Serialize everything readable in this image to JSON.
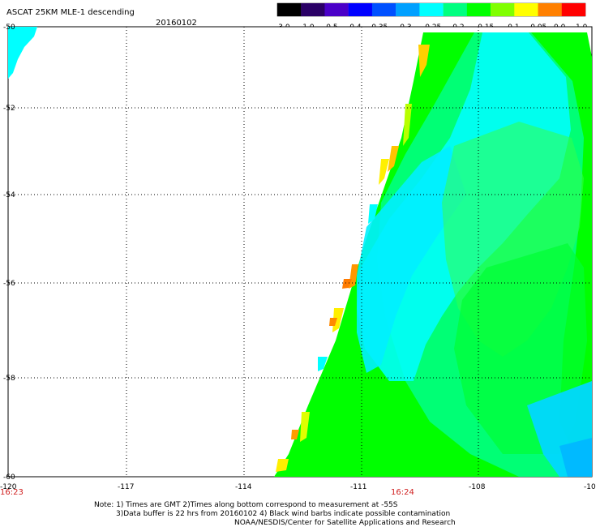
{
  "header": {
    "title": "ASCAT 25KM MLE-1 descending",
    "date": "20160102"
  },
  "colorbar": {
    "labels": [
      "-3.0",
      "-1.0",
      "-0.5",
      "-0.4",
      "-0.35",
      "-0.3",
      "-0.25",
      "-0.2",
      "-0.15",
      "-0.1",
      "-0.05",
      "0.0",
      "1.0"
    ],
    "colors": [
      "#000000",
      "#2a0066",
      "#4a00c8",
      "#0000ff",
      "#0050ff",
      "#00a0ff",
      "#00ffff",
      "#00ff80",
      "#00ff00",
      "#80ff00",
      "#ffff00",
      "#ff8000",
      "#ff0000"
    ]
  },
  "map": {
    "lat_labels": [
      "-50",
      "-52",
      "-54",
      "-56",
      "-58",
      "-60"
    ],
    "lon_labels": [
      "-120",
      "-117",
      "-114",
      "-111",
      "-108",
      "-10"
    ],
    "time_labels": [
      "16:23",
      "16:24"
    ],
    "grid_color": "#000000"
  },
  "notes": {
    "line1": "Note: 1) Times are GMT 2)Times along bottom correspond to measurement at -55S",
    "line2": "3)Data buffer is 22 hrs from 20160102 4) Black wind barbs indicate possible contamination",
    "line3": "NOAA/NESDIS/Center for Satellite Applications and Research"
  }
}
